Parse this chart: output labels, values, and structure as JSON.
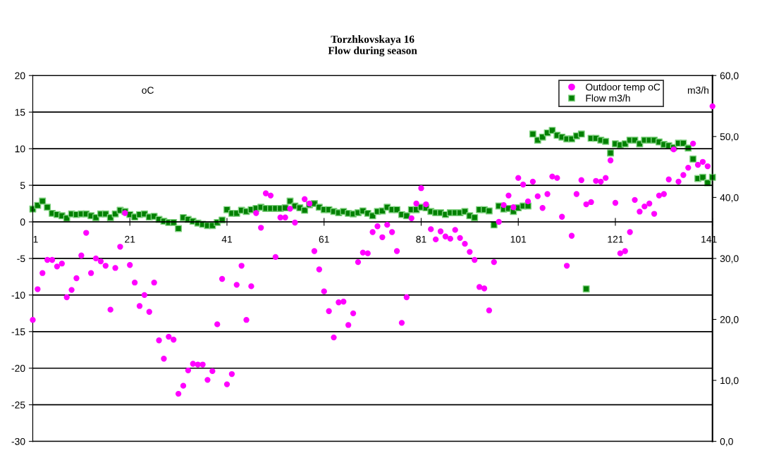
{
  "chart_data": {
    "type": "scatter",
    "title": "Torzhkovskaya 16\nFlow during season",
    "ylabel": "oC",
    "y2label": "m3/h",
    "x": [
      1,
      2,
      3,
      4,
      5,
      6,
      7,
      8,
      9,
      10,
      11,
      12,
      13,
      14,
      15,
      16,
      17,
      18,
      19,
      20,
      21,
      22,
      23,
      24,
      25,
      26,
      27,
      28,
      29,
      30,
      31,
      32,
      33,
      34,
      35,
      36,
      37,
      38,
      39,
      40,
      41,
      42,
      43,
      44,
      45,
      46,
      47,
      48,
      49,
      50,
      51,
      52,
      53,
      54,
      55,
      56,
      57,
      58,
      59,
      60,
      61,
      62,
      63,
      64,
      65,
      66,
      67,
      68,
      69,
      70,
      71,
      72,
      73,
      74,
      75,
      76,
      77,
      78,
      79,
      80,
      81,
      82,
      83,
      84,
      85,
      86,
      87,
      88,
      89,
      90,
      91,
      92,
      93,
      94,
      95,
      96,
      97,
      98,
      99,
      100,
      101,
      102,
      103,
      104,
      105,
      106,
      107,
      108,
      109,
      110,
      111,
      112,
      113,
      114,
      115,
      116,
      117,
      118,
      119,
      120,
      121,
      122,
      123,
      124,
      125,
      126,
      127,
      128,
      129,
      130,
      131,
      132,
      133,
      134,
      135,
      136,
      137,
      138,
      139,
      140,
      141
    ],
    "series": [
      {
        "name": "Outdoor temp oC",
        "color": "#ff00ff",
        "marker": "circle",
        "values": [
          -13.4,
          -9.2,
          -7.0,
          -5.2,
          -5.2,
          -6.1,
          -5.7,
          -10.3,
          -9.3,
          -7.7,
          -4.6,
          -1.5,
          -7.0,
          -5.0,
          -5.4,
          -6.0,
          -12.0,
          -6.3,
          -3.4,
          1.2,
          -5.9,
          -8.3,
          -11.5,
          -10.0,
          -12.3,
          -8.3,
          -16.2,
          -18.7,
          -15.7,
          -16.1,
          -23.5,
          -22.4,
          -20.3,
          -19.4,
          -19.5,
          -19.5,
          -21.6,
          -20.4,
          -14.0,
          -7.8,
          -22.2,
          -20.8,
          -8.6,
          -6.0,
          -13.4,
          -8.8,
          1.2,
          -0.8,
          3.9,
          3.6,
          -4.8,
          0.6,
          0.6,
          1.8,
          -0.1,
          null,
          3.1,
          2.5,
          -4.0,
          -6.5,
          -9.5,
          -12.2,
          -15.8,
          -11.0,
          -10.9,
          -14.1,
          -12.5,
          -5.5,
          -4.2,
          -4.3,
          -1.4,
          -0.6,
          -2.1,
          -0.4,
          -1.4,
          -4.0,
          -13.8,
          -10.3,
          0.5,
          2.5,
          4.6,
          2.4,
          -1.0,
          -2.4,
          -1.3,
          -2.0,
          -2.3,
          -1.1,
          -2.2,
          -3.0,
          -4.1,
          -5.2,
          -8.9,
          -9.1,
          -12.1,
          -5.5,
          0.0,
          2.3,
          3.6,
          2.0,
          6.0,
          5.1,
          2.8,
          5.5,
          3.5,
          1.9,
          3.8,
          6.2,
          6.0,
          0.7,
          -6.0,
          -1.9,
          3.8,
          5.7,
          2.4,
          2.7,
          5.6,
          5.5,
          6.0,
          8.4,
          2.6,
          -4.3,
          -4.0,
          -1.4,
          3.0,
          1.4,
          2.1,
          2.5,
          1.1,
          3.6,
          3.8,
          5.8,
          9.9,
          5.5,
          6.4,
          7.4,
          10.7,
          7.8,
          8.2,
          7.6,
          15.8
        ]
      },
      {
        "name": "Flow m3/h",
        "color": "#008000",
        "marker": "square",
        "axis": "y2",
        "values": [
          38.1,
          38.7,
          39.4,
          38.4,
          37.4,
          37.2,
          37.0,
          36.6,
          37.3,
          37.2,
          37.3,
          37.3,
          37.0,
          36.7,
          37.3,
          37.3,
          36.7,
          37.3,
          37.9,
          37.7,
          37.2,
          36.8,
          37.2,
          37.3,
          36.8,
          36.9,
          36.4,
          36.1,
          35.9,
          35.9,
          34.9,
          36.7,
          36.4,
          36.1,
          35.8,
          35.6,
          35.4,
          35.4,
          35.9,
          36.3,
          38.0,
          37.4,
          37.4,
          37.9,
          37.7,
          38.0,
          38.2,
          38.4,
          38.2,
          38.2,
          38.2,
          38.2,
          38.3,
          39.4,
          38.6,
          38.3,
          37.9,
          38.8,
          39.0,
          38.4,
          38.0,
          38.0,
          37.7,
          37.5,
          37.7,
          37.4,
          37.3,
          37.5,
          37.8,
          37.4,
          37.0,
          37.7,
          37.8,
          38.4,
          38.0,
          38.0,
          37.2,
          37.0,
          38.0,
          38.0,
          38.4,
          38.3,
          37.7,
          37.5,
          37.5,
          37.2,
          37.5,
          37.5,
          37.5,
          37.7,
          37.0,
          36.7,
          38.0,
          38.0,
          37.8,
          35.5,
          38.6,
          38.1,
          38.2,
          37.7,
          38.3,
          38.6,
          38.6,
          50.4,
          49.4,
          49.9,
          50.6,
          51.0,
          50.2,
          49.9,
          49.6,
          49.6,
          50.1,
          50.4,
          25.0,
          49.7,
          49.7,
          49.4,
          49.2,
          47.3,
          48.8,
          48.6,
          48.8,
          49.4,
          49.4,
          48.8,
          49.4,
          49.4,
          49.4,
          49.1,
          48.7,
          48.5,
          48.2,
          48.9,
          48.9,
          48.1,
          46.3,
          43.1,
          43.3,
          42.4,
          43.3
        ]
      }
    ],
    "xlim": [
      1,
      141
    ],
    "xticks": [
      1,
      21,
      41,
      61,
      81,
      101,
      121,
      141
    ],
    "ylim": [
      -30,
      20
    ],
    "yticks": [
      -30,
      -25,
      -20,
      -15,
      -10,
      -5,
      0,
      5,
      10,
      15,
      20
    ],
    "y2lim": [
      0,
      60
    ],
    "y2ticks": [
      {
        "value": 0,
        "label": "0,0"
      },
      {
        "value": 10,
        "label": "10,0"
      },
      {
        "value": 20,
        "label": "20,0"
      },
      {
        "value": 30,
        "label": "30,0"
      },
      {
        "value": 40,
        "label": "40,0"
      },
      {
        "value": 50,
        "label": "50,0"
      },
      {
        "value": 60,
        "label": "60,0"
      }
    ],
    "grid": "y",
    "legend": "top right"
  }
}
